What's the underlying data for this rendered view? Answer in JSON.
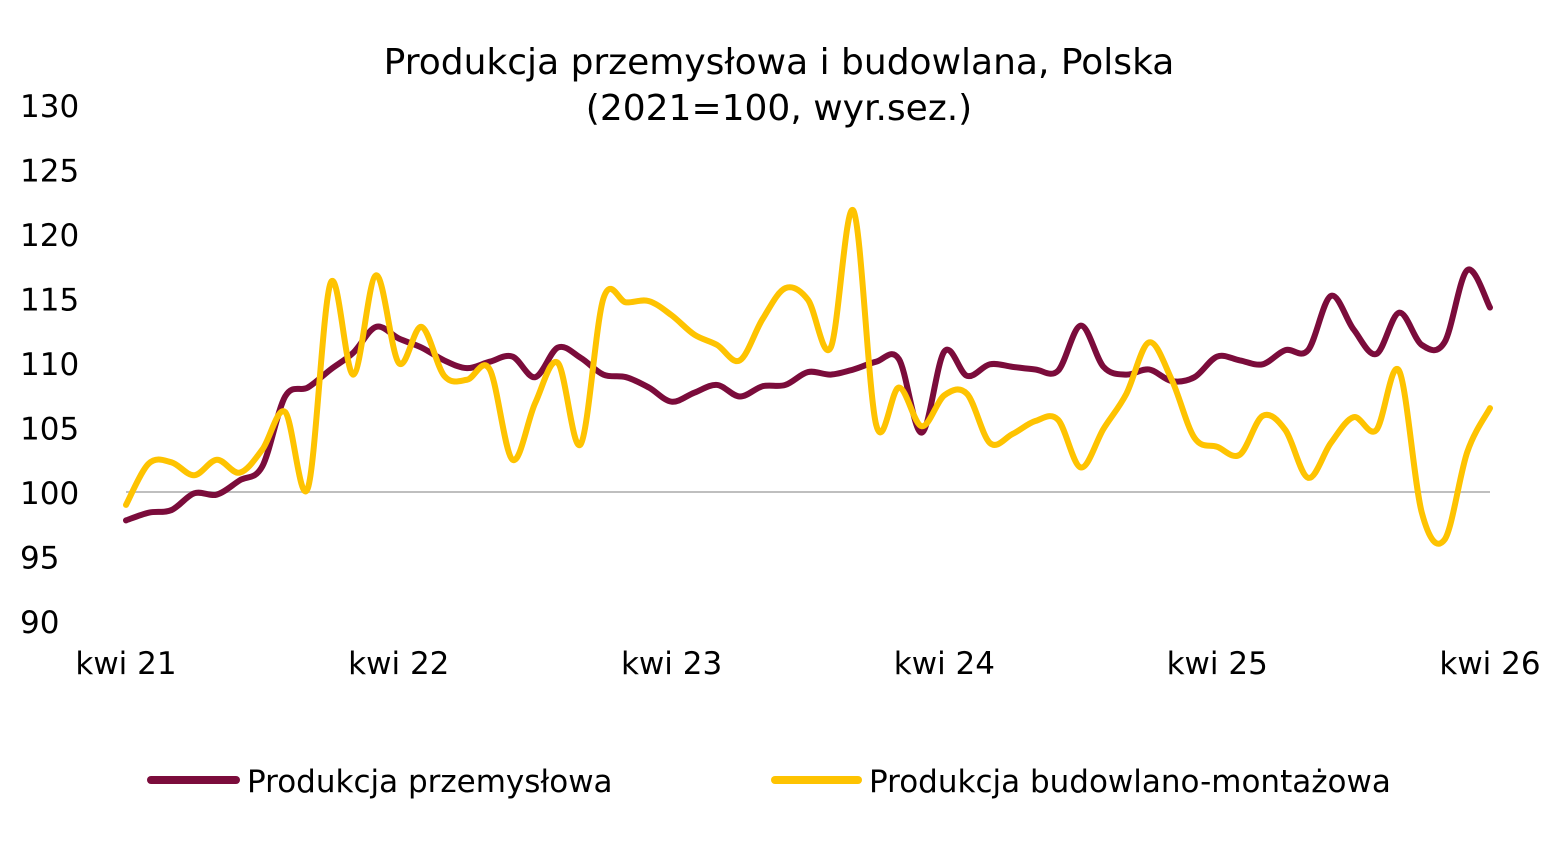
{
  "chart_data": {
    "type": "line",
    "title": "Produkcja przemysłowa i budowlana, Polska",
    "subtitle": "(2021=100, wyr.sez.)",
    "xlabel": "",
    "ylabel": "",
    "ylim": [
      90,
      130
    ],
    "yticks": [
      "130",
      "125",
      "120",
      "115",
      "110",
      "105",
      "100",
      "95",
      "90"
    ],
    "xticks": [
      "kwi 21",
      "kwi 22",
      "kwi 23",
      "kwi 24",
      "kwi 25",
      "kwi 26"
    ],
    "reference_line": 100,
    "grid": false,
    "legend_position": "bottom",
    "series": [
      {
        "name": "Produkcja przemysłowa",
        "color": "#7b0c3b",
        "values": [
          97.8,
          98.4,
          98.6,
          99.9,
          99.8,
          100.9,
          102.0,
          107.4,
          108.1,
          109.5,
          110.8,
          112.8,
          111.9,
          111.2,
          110.2,
          109.6,
          110.1,
          110.5,
          108.9,
          111.2,
          110.4,
          109.1,
          108.9,
          108.1,
          107.0,
          107.7,
          108.3,
          107.4,
          108.2,
          108.3,
          109.3,
          109.1,
          109.5,
          110.1,
          110.3,
          104.6,
          110.9,
          109.0,
          109.9,
          109.7,
          109.5,
          109.4,
          112.9,
          109.7,
          109.1,
          109.5,
          108.6,
          108.9,
          110.5,
          110.2,
          109.9,
          111.0,
          111.0,
          115.2,
          112.6,
          110.7,
          113.9,
          111.4,
          111.6,
          117.2,
          114.3
        ]
      },
      {
        "name": "Produkcja budowlano-montażowa",
        "color": "#fec301",
        "values": [
          99.0,
          102.2,
          102.3,
          101.3,
          102.5,
          101.5,
          103.3,
          106.2,
          100.3,
          116.2,
          109.1,
          116.8,
          110.0,
          112.8,
          109.0,
          108.7,
          109.5,
          102.5,
          106.9,
          110.0,
          103.7,
          115.0,
          114.7,
          114.8,
          113.7,
          112.2,
          111.4,
          110.2,
          113.4,
          115.8,
          114.9,
          111.2,
          121.8,
          105.2,
          108.1,
          105.1,
          107.5,
          107.6,
          103.8,
          104.5,
          105.5,
          105.6,
          101.9,
          104.9,
          107.6,
          111.6,
          108.7,
          104.2,
          103.5,
          102.9,
          105.9,
          104.8,
          101.1,
          103.8,
          105.8,
          104.8,
          109.4,
          98.4,
          96.3,
          103.1,
          106.5
        ]
      }
    ]
  }
}
